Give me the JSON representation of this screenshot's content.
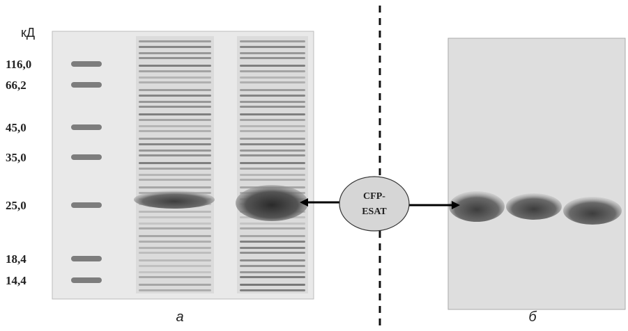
{
  "left_panel": {
    "unit": "кД",
    "markers": [
      "116,0",
      "66,2",
      "45,0",
      "35,0",
      "25,0",
      "18,4",
      "14,4"
    ],
    "caption": "а"
  },
  "callout": {
    "lines": [
      "CFP-",
      "ESAT"
    ]
  },
  "right_panel": {
    "caption": "б"
  }
}
